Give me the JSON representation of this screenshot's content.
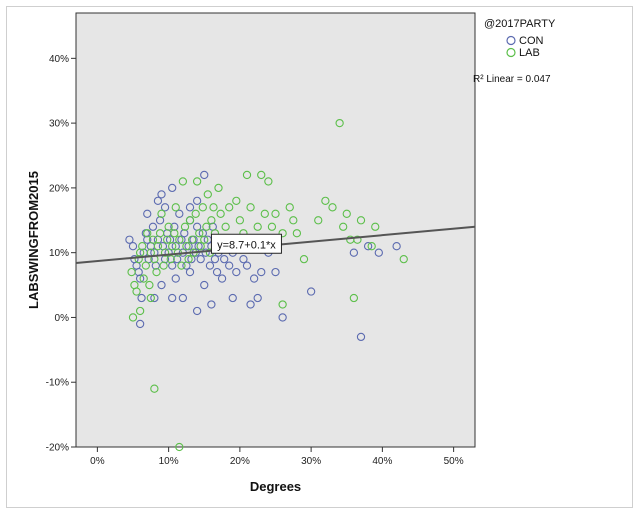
{
  "chart_data": {
    "type": "scatter",
    "xlabel": "Degrees",
    "ylabel": "LABSWINGFROM2015",
    "xlim": [
      -3,
      53
    ],
    "ylim": [
      -20,
      47
    ],
    "x_ticks": [
      "0%",
      "10%",
      "20%",
      "30%",
      "40%",
      "50%"
    ],
    "x_tick_values": [
      0,
      10,
      20,
      30,
      40,
      50
    ],
    "y_ticks": [
      "40%",
      "30%",
      "20%",
      "10%",
      "0%",
      "-10%",
      "-20%"
    ],
    "y_tick_values": [
      40,
      30,
      20,
      10,
      0,
      -10,
      -20
    ],
    "grid": false,
    "plot_background": "#e6e6e6",
    "legend": {
      "title": "@2017PARTY",
      "position": "right",
      "entries": [
        {
          "name": "CON",
          "color": "#5c6bb0"
        },
        {
          "name": "LAB",
          "color": "#5cbf4a"
        }
      ],
      "r2_label": "R² Linear = 0.047"
    },
    "fit_line": {
      "intercept": 8.7,
      "slope": 0.1,
      "equation_label": "y=8.7+0.1*x",
      "color": "#555555"
    },
    "series": [
      {
        "name": "CON",
        "color": "#5c6bb0",
        "points": [
          [
            4.5,
            12
          ],
          [
            5,
            11
          ],
          [
            5.2,
            9
          ],
          [
            5.5,
            8
          ],
          [
            5.8,
            7
          ],
          [
            6,
            6
          ],
          [
            6.2,
            3
          ],
          [
            6.5,
            10
          ],
          [
            6.8,
            13
          ],
          [
            7,
            12
          ],
          [
            7.2,
            9
          ],
          [
            7.5,
            11
          ],
          [
            7.8,
            14
          ],
          [
            8,
            10
          ],
          [
            8.2,
            8
          ],
          [
            8.5,
            12
          ],
          [
            8.8,
            15
          ],
          [
            9,
            19
          ],
          [
            9.2,
            11
          ],
          [
            9.5,
            9
          ],
          [
            9.8,
            13
          ],
          [
            10,
            10
          ],
          [
            10.2,
            12
          ],
          [
            10.5,
            8
          ],
          [
            10.8,
            14
          ],
          [
            11,
            11
          ],
          [
            11.2,
            9
          ],
          [
            11.5,
            16
          ],
          [
            11.8,
            12
          ],
          [
            12,
            10
          ],
          [
            12.2,
            13
          ],
          [
            12.5,
            8
          ],
          [
            12.8,
            11
          ],
          [
            13,
            15
          ],
          [
            13.2,
            9
          ],
          [
            13.5,
            12
          ],
          [
            13.8,
            10
          ],
          [
            14,
            14
          ],
          [
            14.2,
            11
          ],
          [
            14.5,
            9
          ],
          [
            14.8,
            13
          ],
          [
            15,
            22
          ],
          [
            15.2,
            10
          ],
          [
            15.5,
            12
          ],
          [
            15.8,
            8
          ],
          [
            16,
            11
          ],
          [
            16.2,
            14
          ],
          [
            16.5,
            9
          ],
          [
            16.8,
            7
          ],
          [
            17,
            10
          ],
          [
            17.2,
            12
          ],
          [
            17.5,
            6
          ],
          [
            17.8,
            9
          ],
          [
            18,
            11
          ],
          [
            18.5,
            8
          ],
          [
            19,
            10
          ],
          [
            19.5,
            7
          ],
          [
            20,
            12
          ],
          [
            20.5,
            9
          ],
          [
            21,
            8
          ],
          [
            21.5,
            2
          ],
          [
            22,
            6
          ],
          [
            22.5,
            3
          ],
          [
            23,
            7
          ],
          [
            24,
            10
          ],
          [
            25,
            7
          ],
          [
            26,
            0
          ],
          [
            30,
            4
          ],
          [
            36,
            10
          ],
          [
            37,
            -3
          ],
          [
            38,
            11
          ],
          [
            39.5,
            10
          ],
          [
            42,
            11
          ],
          [
            6,
            -1
          ],
          [
            8,
            3
          ],
          [
            10.5,
            3
          ],
          [
            12,
            3
          ],
          [
            14,
            1
          ],
          [
            16,
            2
          ],
          [
            19,
            3
          ],
          [
            8.5,
            18
          ],
          [
            9.5,
            17
          ],
          [
            10.5,
            20
          ],
          [
            13,
            17
          ],
          [
            14,
            18
          ],
          [
            7,
            16
          ],
          [
            9,
            5
          ],
          [
            11,
            6
          ],
          [
            13,
            7
          ],
          [
            15,
            5
          ]
        ]
      },
      {
        "name": "LAB",
        "color": "#5cbf4a",
        "points": [
          [
            4.8,
            7
          ],
          [
            5.2,
            5
          ],
          [
            5.5,
            4
          ],
          [
            5.8,
            9
          ],
          [
            6,
            10
          ],
          [
            6.3,
            11
          ],
          [
            6.5,
            6
          ],
          [
            6.8,
            8
          ],
          [
            7,
            13
          ],
          [
            7.3,
            5
          ],
          [
            7.5,
            10
          ],
          [
            7.8,
            12
          ],
          [
            8,
            9
          ],
          [
            8.3,
            7
          ],
          [
            8.5,
            11
          ],
          [
            8.8,
            13
          ],
          [
            9,
            16
          ],
          [
            9.3,
            8
          ],
          [
            9.5,
            10
          ],
          [
            9.8,
            12
          ],
          [
            10,
            14
          ],
          [
            10.3,
            9
          ],
          [
            10.5,
            11
          ],
          [
            10.8,
            13
          ],
          [
            11,
            17
          ],
          [
            11.3,
            10
          ],
          [
            11.5,
            12
          ],
          [
            11.8,
            8
          ],
          [
            12,
            21
          ],
          [
            12.3,
            14
          ],
          [
            12.5,
            11
          ],
          [
            12.8,
            9
          ],
          [
            13,
            15
          ],
          [
            13.3,
            12
          ],
          [
            13.5,
            10
          ],
          [
            13.8,
            16
          ],
          [
            14,
            21
          ],
          [
            14.3,
            13
          ],
          [
            14.5,
            11
          ],
          [
            14.8,
            17
          ],
          [
            15,
            12
          ],
          [
            15.3,
            14
          ],
          [
            15.5,
            19
          ],
          [
            15.8,
            10
          ],
          [
            16,
            15
          ],
          [
            16.3,
            17
          ],
          [
            16.5,
            13
          ],
          [
            16.8,
            11
          ],
          [
            17,
            20
          ],
          [
            17.3,
            16
          ],
          [
            17.5,
            12
          ],
          [
            18,
            14
          ],
          [
            18.5,
            17
          ],
          [
            19,
            11
          ],
          [
            19.5,
            18
          ],
          [
            20,
            15
          ],
          [
            20.5,
            13
          ],
          [
            21,
            22
          ],
          [
            21.5,
            17
          ],
          [
            22,
            11
          ],
          [
            22.5,
            14
          ],
          [
            23,
            22
          ],
          [
            23.5,
            16
          ],
          [
            24,
            21
          ],
          [
            24.5,
            14
          ],
          [
            25,
            16
          ],
          [
            26,
            13
          ],
          [
            27,
            17
          ],
          [
            27.5,
            15
          ],
          [
            28,
            13
          ],
          [
            29,
            9
          ],
          [
            31,
            15
          ],
          [
            32,
            18
          ],
          [
            33,
            17
          ],
          [
            34,
            30
          ],
          [
            34.5,
            14
          ],
          [
            35,
            16
          ],
          [
            35.5,
            12
          ],
          [
            36,
            3
          ],
          [
            36.5,
            12
          ],
          [
            37,
            15
          ],
          [
            38.5,
            11
          ],
          [
            39,
            14
          ],
          [
            43,
            9
          ],
          [
            5,
            0
          ],
          [
            6,
            1
          ],
          [
            7.5,
            3
          ],
          [
            8,
            -11
          ],
          [
            11.5,
            -20
          ],
          [
            26,
            2
          ]
        ]
      }
    ]
  }
}
